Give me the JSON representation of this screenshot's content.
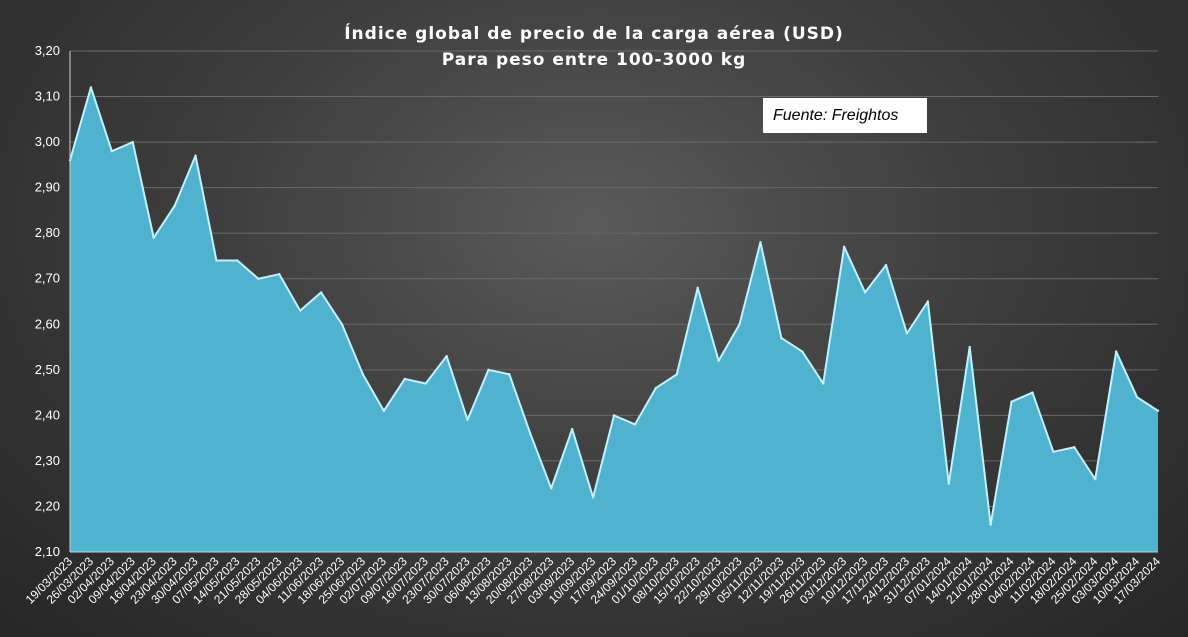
{
  "chart_data": {
    "type": "area",
    "title": "Índice global de precio de la carga aérea (USD)",
    "subtitle": "Para peso entre 100-3000 kg",
    "annotation": "Fuente: Freightos",
    "ylim": [
      2.1,
      3.2
    ],
    "yticks": [
      "2,10",
      "2,20",
      "2,30",
      "2,40",
      "2,50",
      "2,60",
      "2,70",
      "2,80",
      "2,90",
      "3,00",
      "3,10",
      "3,20"
    ],
    "grid": true,
    "x": [
      "19/03/2023",
      "26/03/2023",
      "02/04/2023",
      "09/04/2023",
      "16/04/2023",
      "23/04/2023",
      "30/04/2023",
      "07/05/2023",
      "14/05/2023",
      "21/05/2023",
      "28/05/2023",
      "04/06/2023",
      "11/06/2023",
      "18/06/2023",
      "25/06/2023",
      "02/07/2023",
      "09/07/2023",
      "16/07/2023",
      "23/07/2023",
      "30/07/2023",
      "06/08/2023",
      "13/08/2023",
      "20/08/2023",
      "27/08/2023",
      "03/09/2023",
      "10/09/2023",
      "17/09/2023",
      "24/09/2023",
      "01/10/2023",
      "08/10/2023",
      "15/10/2023",
      "22/10/2023",
      "29/10/2023",
      "05/11/2023",
      "12/11/2023",
      "19/11/2023",
      "26/11/2023",
      "03/12/2023",
      "10/12/2023",
      "17/12/2023",
      "24/12/2023",
      "31/12/2023",
      "07/01/2024",
      "14/01/2024",
      "21/01/2024",
      "28/01/2024",
      "04/02/2024",
      "11/02/2024",
      "18/02/2024",
      "25/02/2024",
      "03/03/2024",
      "10/03/2024",
      "17/03/2024"
    ],
    "values": [
      2.96,
      3.12,
      2.98,
      3.0,
      2.79,
      2.86,
      2.97,
      2.74,
      2.74,
      2.7,
      2.71,
      2.63,
      2.67,
      2.6,
      2.49,
      2.41,
      2.48,
      2.47,
      2.53,
      2.39,
      2.5,
      2.49,
      2.36,
      2.24,
      2.37,
      2.22,
      2.4,
      2.38,
      2.46,
      2.49,
      2.68,
      2.52,
      2.6,
      2.78,
      2.57,
      2.54,
      2.47,
      2.77,
      2.67,
      2.73,
      2.58,
      2.65,
      2.25,
      2.55,
      2.16,
      2.43,
      2.45,
      2.32,
      2.33,
      2.26,
      2.54,
      2.44,
      2.41
    ],
    "colors": {
      "fill": "#4fb3d0",
      "highlight": "#bdf2ff",
      "grid": "#6a6a6a",
      "axis": "#cfcfcf"
    }
  }
}
